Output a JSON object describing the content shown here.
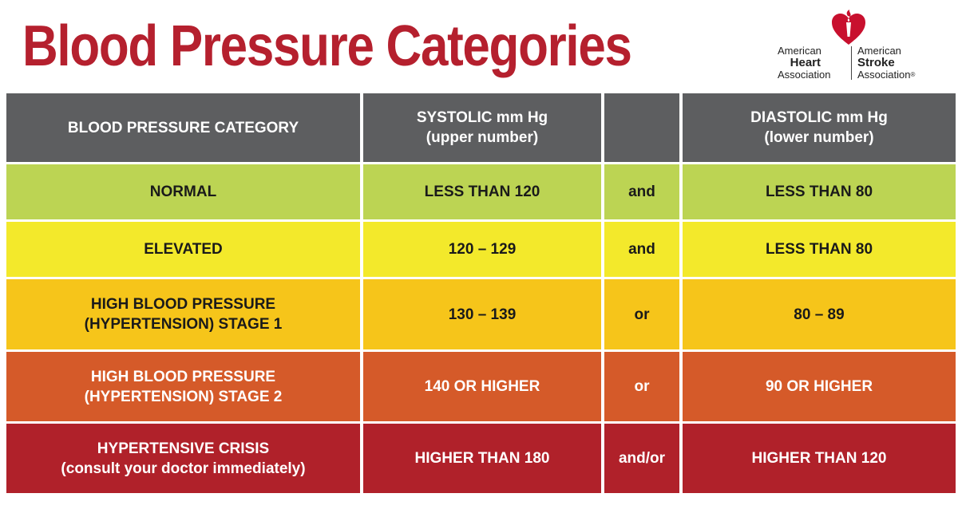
{
  "title": "Blood Pressure Categories",
  "logo": {
    "left": [
      "American",
      "Heart",
      "Association"
    ],
    "right": [
      "American",
      "Stroke",
      "Association"
    ],
    "trademark": "®"
  },
  "colors": {
    "title": "#b5202e",
    "header": "#5d5e60",
    "normal": "#bcd453",
    "elevated": "#f3e92b",
    "stage1": "#f6c51a",
    "stage2": "#d55a29",
    "crisis": "#b0212a"
  },
  "table": {
    "headers": {
      "category": "BLOOD PRESSURE CATEGORY",
      "systolic": [
        "SYSTOLIC mm Hg",
        "(upper number)"
      ],
      "connector": "",
      "diastolic": [
        "DIASTOLIC mm Hg",
        "(lower number)"
      ]
    },
    "rows": [
      {
        "category": [
          "NORMAL"
        ],
        "systolic": "LESS THAN 120",
        "connector": "and",
        "diastolic": "LESS THAN 80"
      },
      {
        "category": [
          "ELEVATED"
        ],
        "systolic": "120 – 129",
        "connector": "and",
        "diastolic": "LESS THAN 80"
      },
      {
        "category": [
          "HIGH BLOOD PRESSURE",
          "(HYPERTENSION) STAGE 1"
        ],
        "systolic": "130 – 139",
        "connector": "or",
        "diastolic": "80 – 89"
      },
      {
        "category": [
          "HIGH BLOOD PRESSURE",
          "(HYPERTENSION) STAGE 2"
        ],
        "systolic": "140 OR HIGHER",
        "connector": "or",
        "diastolic": "90 OR HIGHER"
      },
      {
        "category": [
          "HYPERTENSIVE CRISIS",
          "(consult your doctor immediately)"
        ],
        "systolic": "HIGHER THAN 180",
        "connector": "and/or",
        "diastolic": "HIGHER THAN 120"
      }
    ]
  }
}
